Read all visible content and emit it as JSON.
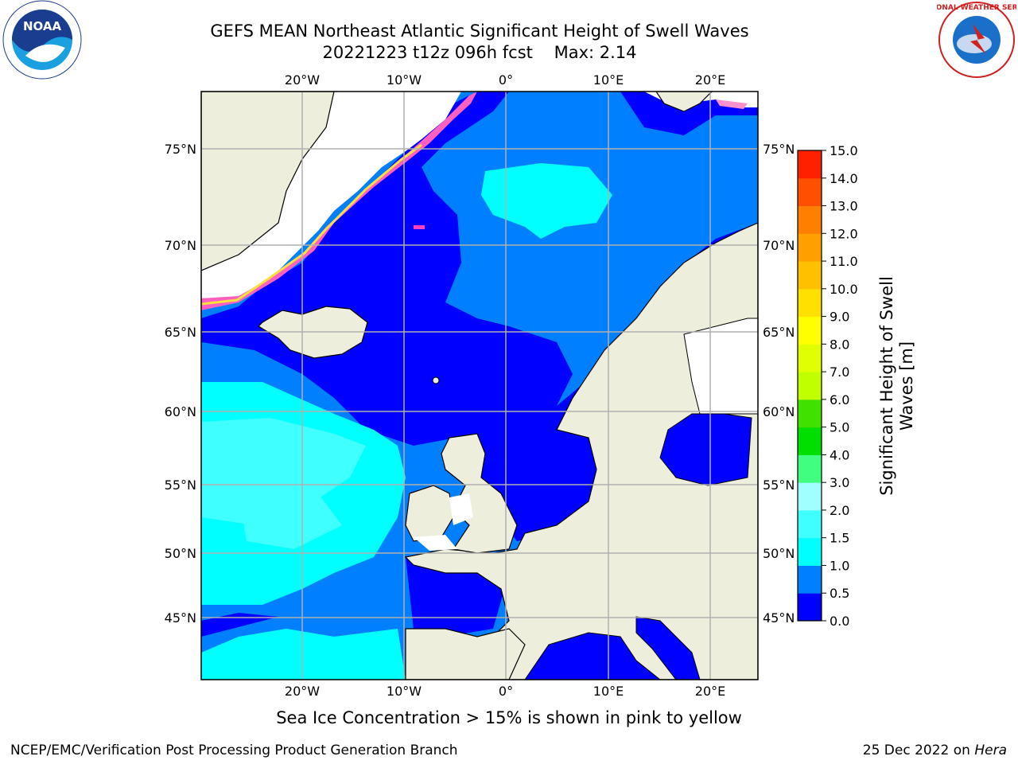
{
  "title": {
    "line1": "GEFS MEAN Northeast Atlantic Significant Height of Swell Waves",
    "line2": "20221223 t12z 096h fcst    Max: 2.14"
  },
  "logos": {
    "left": {
      "name": "noaa-logo",
      "text": "NOAA"
    },
    "right": {
      "name": "nws-logo",
      "text": "NATIONAL WEATHER SERVICE"
    }
  },
  "map": {
    "lon_labels": [
      "20°W",
      "10°W",
      "0°",
      "10°E",
      "20°E"
    ],
    "lat_labels": [
      "75°N",
      "70°N",
      "65°N",
      "60°N",
      "55°N",
      "50°N",
      "45°N"
    ],
    "colors": {
      "ocean_deep": "#0000ff",
      "ocean_mid": "#0080ff",
      "ocean_light": "#00ffff",
      "ocean_pale": "#40ffff",
      "land": "#eeeedc",
      "ice": "#ffffff",
      "grid": "#b0b0b0"
    }
  },
  "colorbar": {
    "ticks": [
      "15.0",
      "14.0",
      "13.0",
      "12.0",
      "11.0",
      "10.0",
      "9.0",
      "8.0",
      "7.0",
      "6.0",
      "5.0",
      "4.0",
      "3.0",
      "2.0",
      "1.5",
      "1.0",
      "0.5",
      "0.0"
    ],
    "label_line1": "Significant Height of Swell",
    "label_line2": "Waves [m]",
    "bins": [
      {
        "range": "0.0-0.5",
        "color": "#0000ff"
      },
      {
        "range": "0.5-1.0",
        "color": "#0080ff"
      },
      {
        "range": "1.0-1.5",
        "color": "#00ffff"
      },
      {
        "range": "1.5-2.0",
        "color": "#40ffff"
      },
      {
        "range": "2.0-3.0",
        "color": "#a0ffff"
      },
      {
        "range": "3.0-4.0",
        "color": "#40ff80"
      },
      {
        "range": "4.0-5.0",
        "color": "#00e000"
      },
      {
        "range": "5.0-6.0",
        "color": "#40e000"
      },
      {
        "range": "6.0-7.0",
        "color": "#c0ff00"
      },
      {
        "range": "7.0-8.0",
        "color": "#e0ff00"
      },
      {
        "range": "8.0-9.0",
        "color": "#ffff00"
      },
      {
        "range": "9.0-10.0",
        "color": "#ffe000"
      },
      {
        "range": "10.0-11.0",
        "color": "#ffc000"
      },
      {
        "range": "11.0-12.0",
        "color": "#ffa000"
      },
      {
        "range": "12.0-13.0",
        "color": "#ff8000"
      },
      {
        "range": "13.0-14.0",
        "color": "#ff5000"
      },
      {
        "range": "14.0-15.0",
        "color": "#ff2000"
      }
    ]
  },
  "caption": "Sea Ice Concentration > 15% is shown in pink to yellow",
  "footer": {
    "left": "NCEP/EMC/Verification Post Processing Product Generation Branch",
    "right_date": "25 Dec 2022 on",
    "right_host": "Hera"
  }
}
